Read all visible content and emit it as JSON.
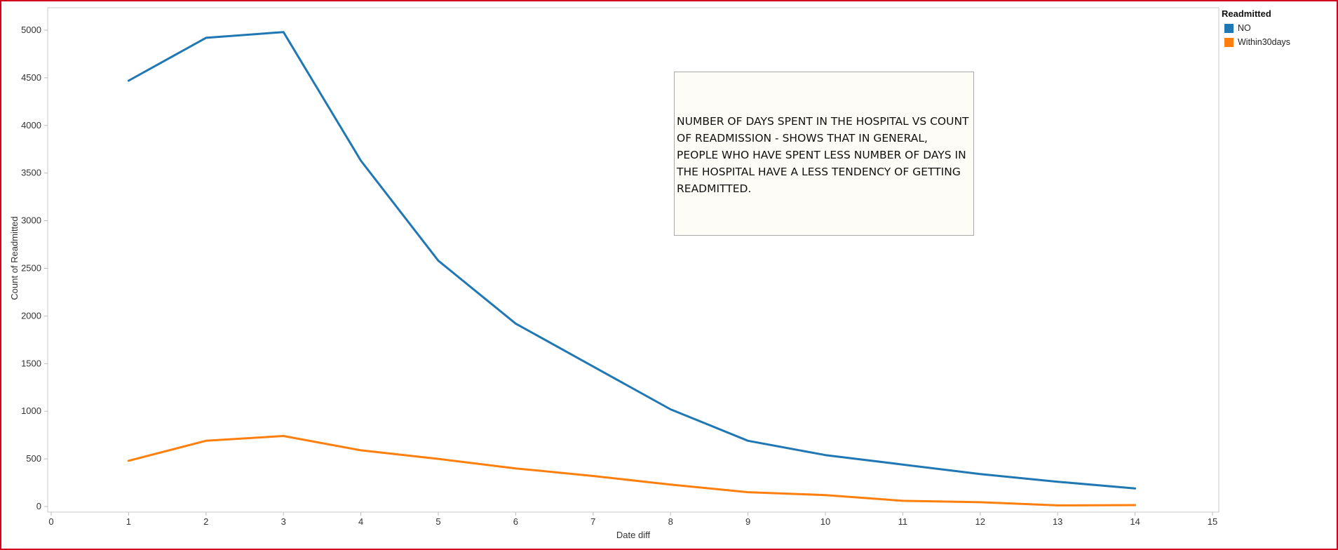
{
  "chart_data": {
    "type": "line",
    "xlabel": "Date diff",
    "ylabel": "Count of Readmitted",
    "xlim": [
      0,
      15
    ],
    "ylim": [
      0,
      5000
    ],
    "x_ticks": [
      "0",
      "1",
      "2",
      "3",
      "4",
      "5",
      "6",
      "7",
      "8",
      "9",
      "10",
      "11",
      "12",
      "13",
      "14",
      "15"
    ],
    "y_ticks": [
      "0",
      "500",
      "1000",
      "1500",
      "2000",
      "2500",
      "3000",
      "3500",
      "4000",
      "4500",
      "5000"
    ],
    "x": [
      1,
      2,
      3,
      4,
      5,
      6,
      7,
      8,
      9,
      10,
      11,
      12,
      13,
      14
    ],
    "series": [
      {
        "name": "NO",
        "color": "#1f77b4",
        "values": [
          4470,
          4920,
          4980,
          3630,
          2580,
          1920,
          1470,
          1020,
          690,
          540,
          440,
          340,
          260,
          190
        ]
      },
      {
        "name": "Within30days",
        "color": "#ff7f0e",
        "values": [
          480,
          690,
          740,
          590,
          500,
          400,
          320,
          230,
          150,
          120,
          60,
          45,
          12,
          15
        ]
      }
    ],
    "legend": {
      "title": "Readmitted",
      "placement": "top-right"
    },
    "annotation": "NUMBER OF DAYS SPENT IN THE HOSPITAL VS COUNT OF READMISSION - SHOWS THAT IN GENERAL, PEOPLE WHO HAVE SPENT LESS NUMBER OF DAYS IN THE HOSPITAL HAVE A LESS TENDENCY OF GETTING READMITTED.",
    "grid": false
  }
}
